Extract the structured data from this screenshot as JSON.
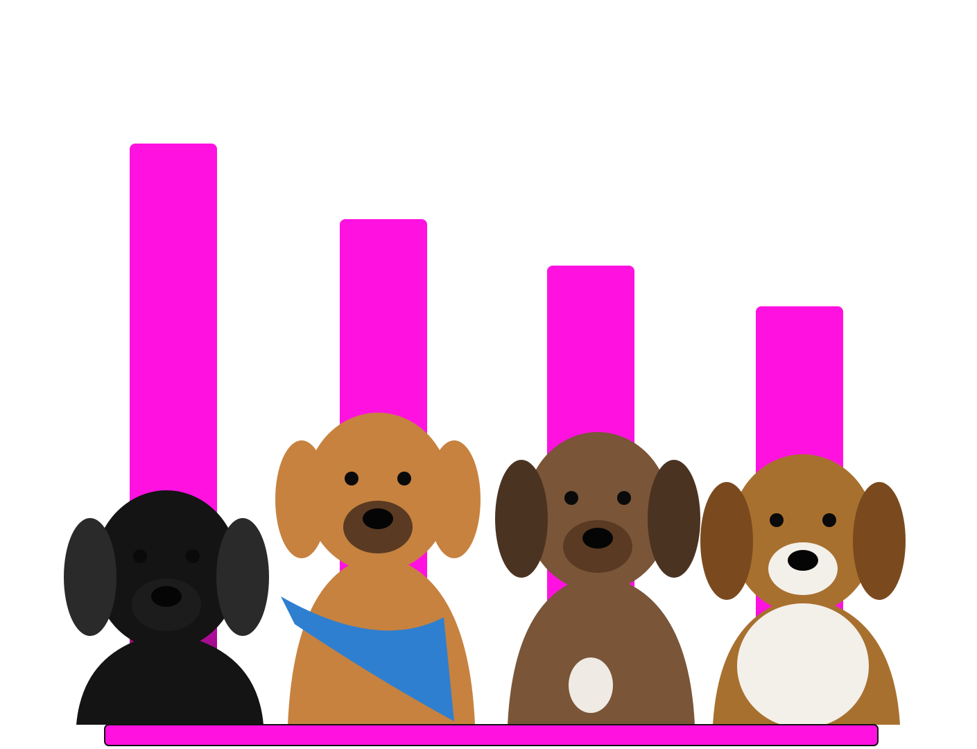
{
  "chart_data": {
    "type": "bar",
    "title": "",
    "xlabel": "",
    "ylabel": "",
    "grid": false,
    "legend": "none",
    "categories": [
      "",
      "",
      "",
      ""
    ],
    "values": [
      100,
      87,
      79,
      72
    ],
    "ylim": [
      0,
      100
    ],
    "bar_color": "#ff12e0",
    "bar_shadow_color": "#4a0640",
    "baseline_color": "#ff12e0"
  },
  "dogs": [
    {
      "icon": "black-labrador-puppy-icon",
      "fur": "#141414",
      "accent": "#2a2a2a"
    },
    {
      "icon": "tan-dog-with-blue-bandana-icon",
      "fur": "#c7823f",
      "accent": "#2f7fd0"
    },
    {
      "icon": "brindle-puppy-icon",
      "fur": "#7a5538",
      "accent": "#4b3322"
    },
    {
      "icon": "beagle-puppy-icon",
      "fur": "#a8702f",
      "accent": "#f3f0ea"
    }
  ]
}
